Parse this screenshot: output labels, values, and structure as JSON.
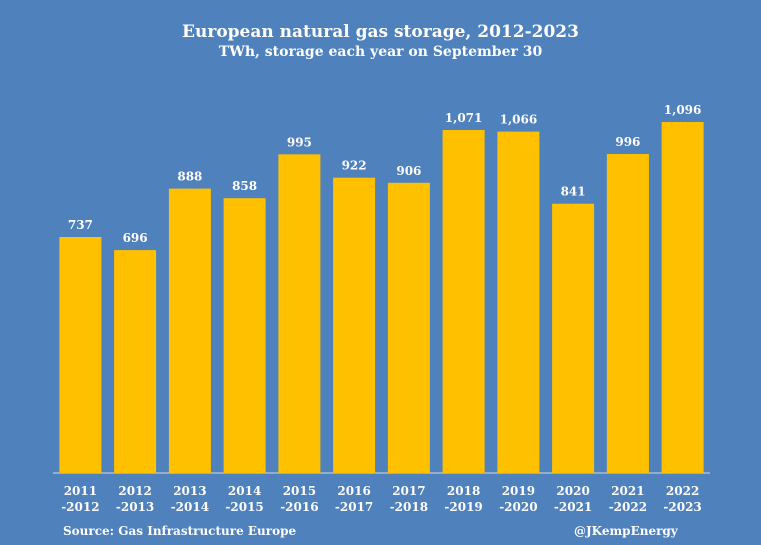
{
  "chart_data": {
    "type": "bar",
    "title": "European natural gas storage, 2012-2023",
    "subtitle": "TWh, storage each year on September 30",
    "categories": [
      [
        "2011",
        "-2012"
      ],
      [
        "2012",
        "-2013"
      ],
      [
        "2013",
        "-2014"
      ],
      [
        "2014",
        "-2015"
      ],
      [
        "2015",
        "-2016"
      ],
      [
        "2016",
        "-2017"
      ],
      [
        "2017",
        "-2018"
      ],
      [
        "2018",
        "-2019"
      ],
      [
        "2019",
        "-2020"
      ],
      [
        "2020",
        "-2021"
      ],
      [
        "2021",
        "-2022"
      ],
      [
        "2022",
        "-2023"
      ]
    ],
    "values": [
      737,
      696,
      888,
      858,
      995,
      922,
      906,
      1071,
      1066,
      841,
      996,
      1096
    ],
    "data_labels": [
      "737",
      "696",
      "888",
      "858",
      "995",
      "922",
      "906",
      "1,071",
      "1,066",
      "841",
      "996",
      "1,096"
    ],
    "ylim": [
      0,
      1200
    ],
    "grid": false,
    "colors": {
      "bar": "#ffc000",
      "background": "#4f81bd",
      "text": "#ffffff"
    }
  },
  "footer": {
    "source": "Source: Gas Infrastructure Europe",
    "credit": "@JKempEnergy"
  }
}
